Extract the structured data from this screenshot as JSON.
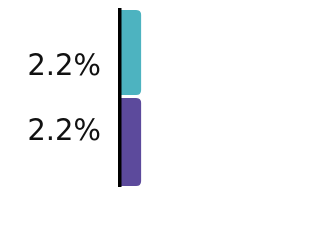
{
  "chart_data": {
    "type": "bar",
    "orientation": "horizontal",
    "categories": [
      null,
      null
    ],
    "values": [
      2.2,
      2.2
    ],
    "value_labels": [
      "2.2%",
      "2.2%"
    ],
    "colors": [
      "#4db3c0",
      "#5c4a9c"
    ],
    "xlim": [
      0,
      5
    ]
  }
}
